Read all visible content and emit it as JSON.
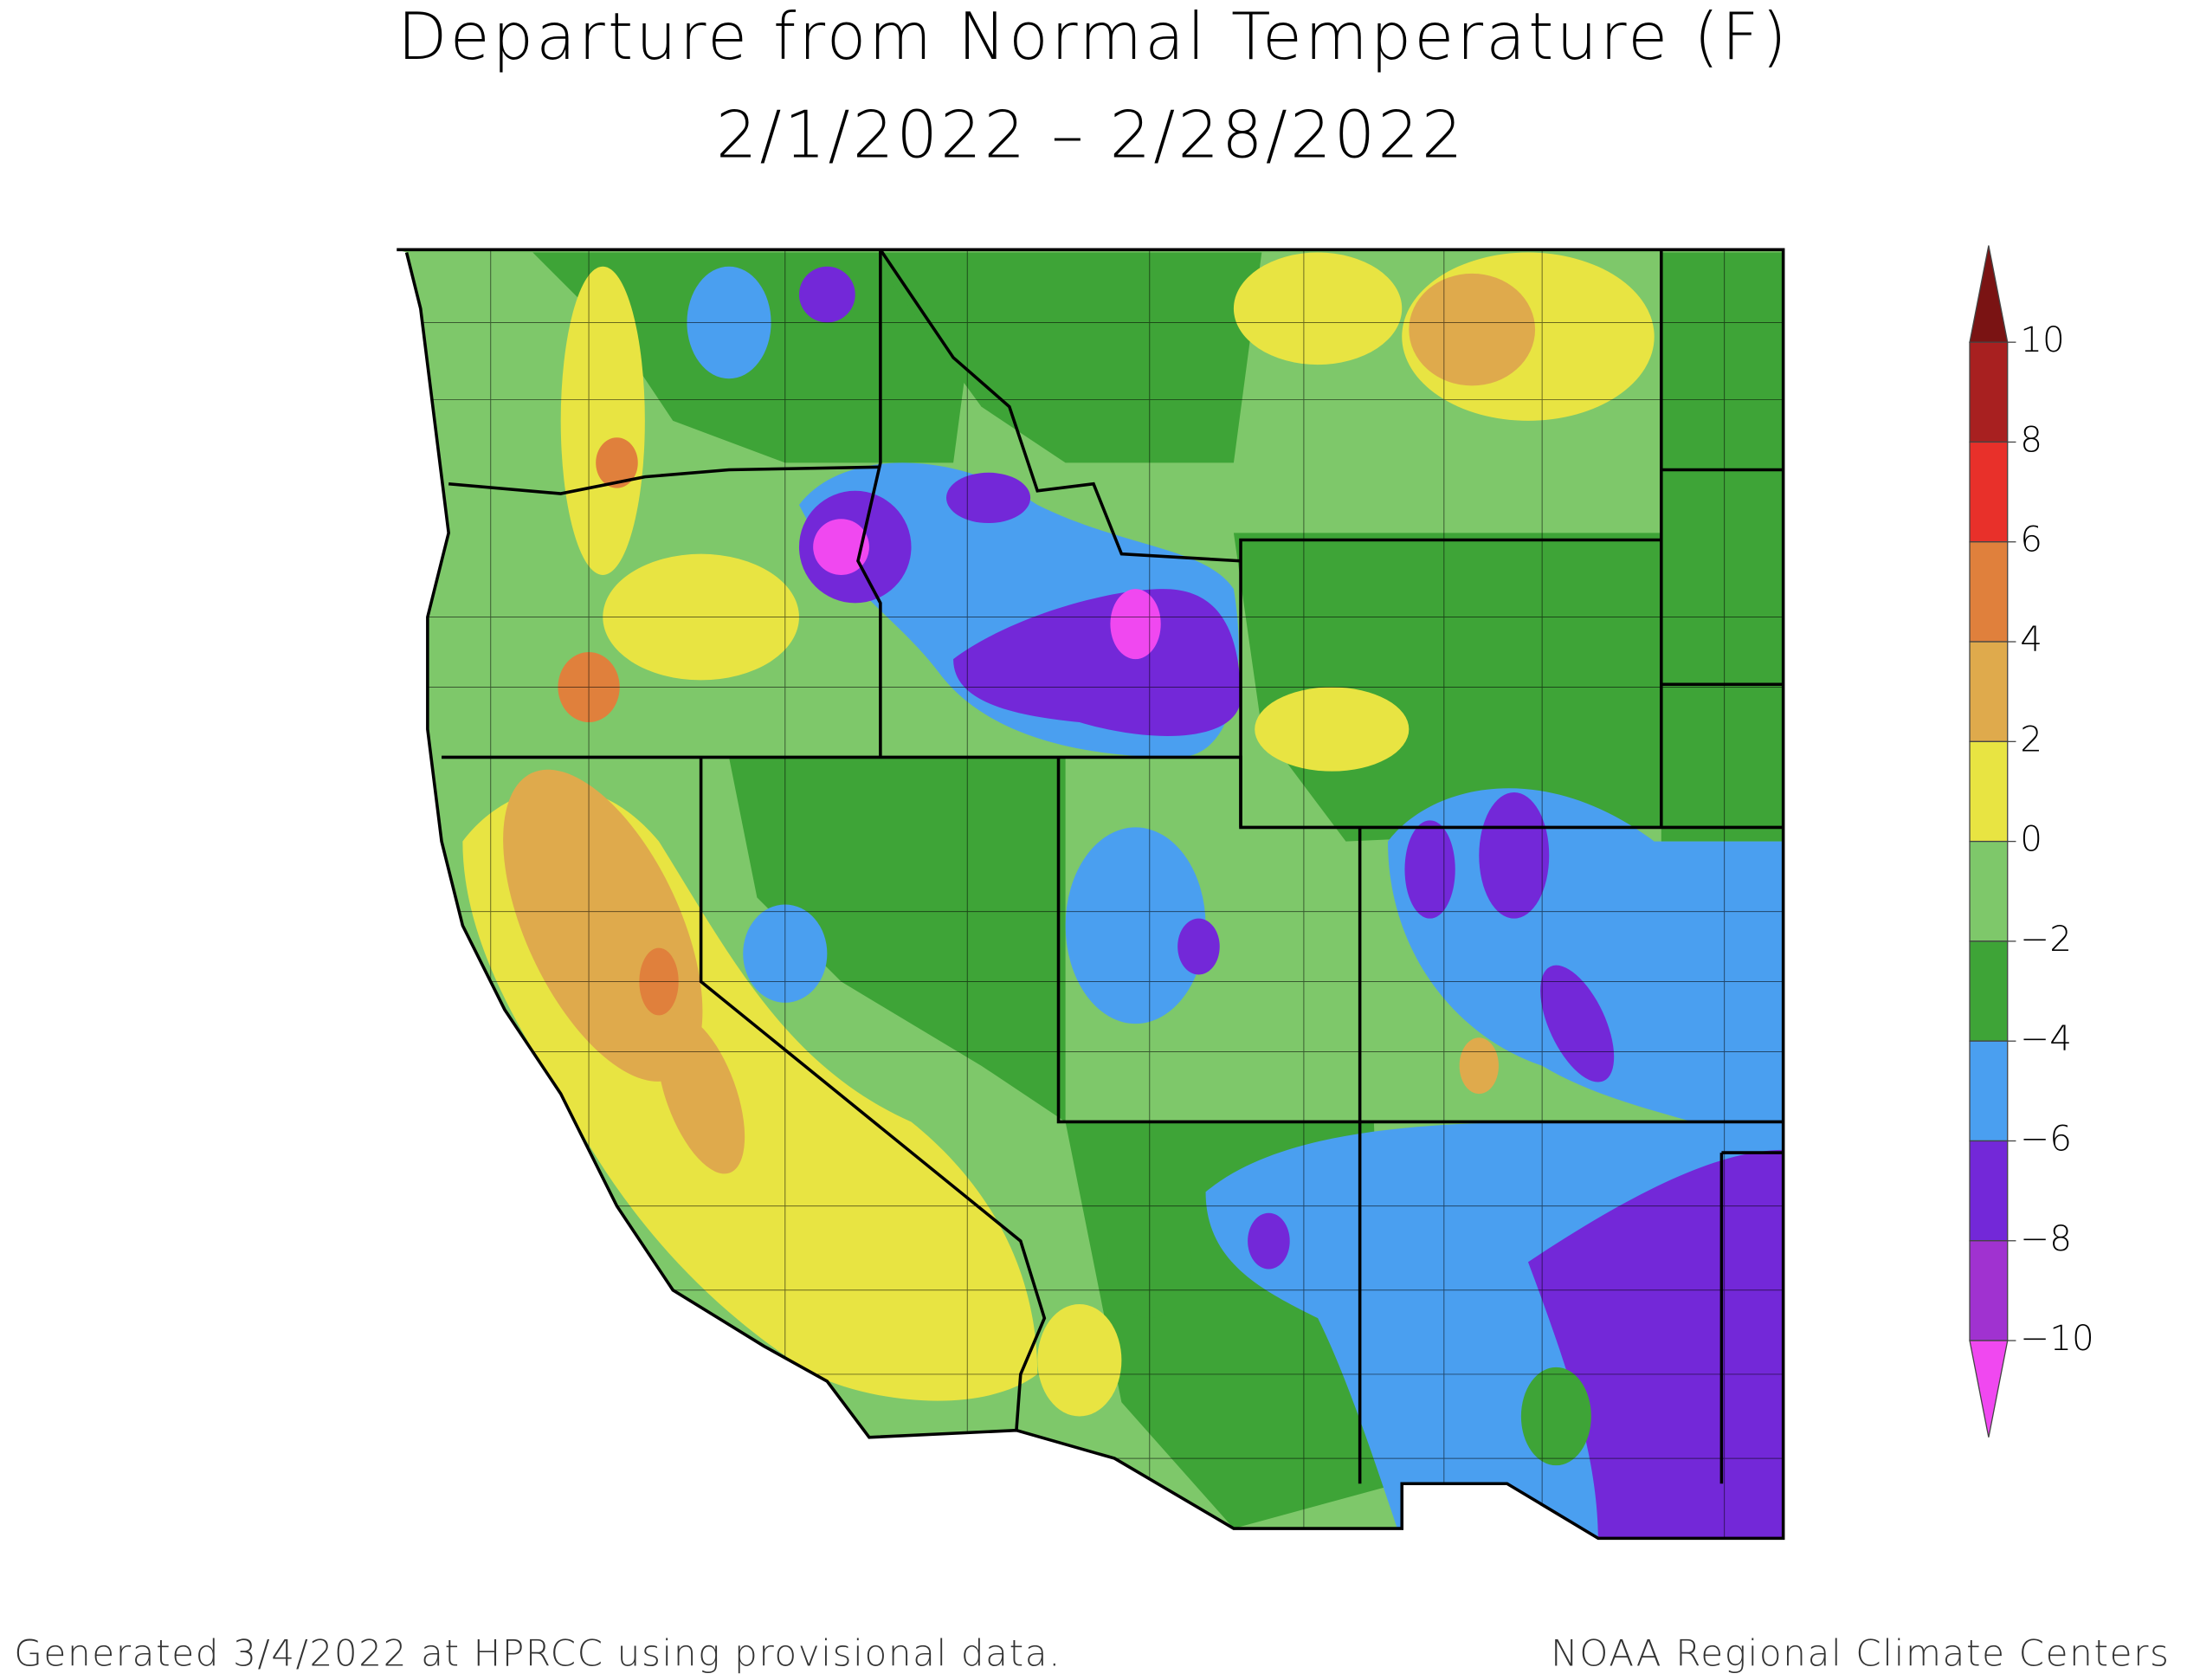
{
  "title": [
    "Departure from Normal Temperature (F)",
    "2/1/2022 – 2/28/2022"
  ],
  "legend": {
    "ticks": [
      {
        "value": 10,
        "label": "10"
      },
      {
        "value": 8,
        "label": "8"
      },
      {
        "value": 6,
        "label": "6"
      },
      {
        "value": 4,
        "label": "4"
      },
      {
        "value": 2,
        "label": "2"
      },
      {
        "value": 0,
        "label": "0"
      },
      {
        "value": -2,
        "label": "−2"
      },
      {
        "value": -4,
        "label": "−4"
      },
      {
        "value": -6,
        "label": "−6"
      },
      {
        "value": -8,
        "label": "−8"
      },
      {
        "value": -10,
        "label": "−10"
      }
    ],
    "colors": [
      "#7a1313",
      "#a82020",
      "#e8302a",
      "#e0803c",
      "#dfaa4c",
      "#e8e442",
      "#7ec86a",
      "#3ea437",
      "#4a9ff0",
      "#7328d8",
      "#a032d0",
      "#f048f0"
    ]
  },
  "footer": {
    "left": "Generated 3/4/2022 at HPRCC using provisional data.",
    "right": "NOAA Regional Climate Centers"
  }
}
